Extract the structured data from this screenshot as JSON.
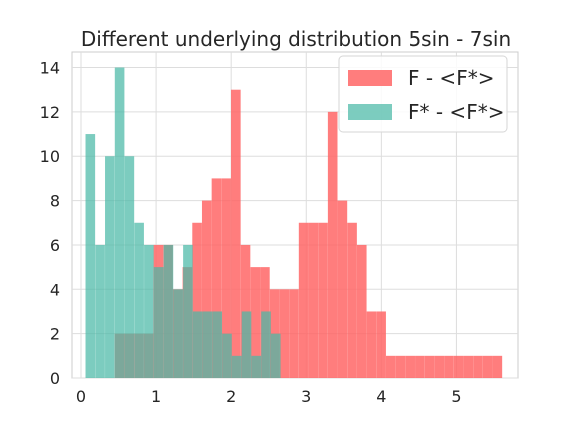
{
  "chart_data": {
    "type": "bar",
    "title": "Different underlying distribution 5sin - 7sin",
    "xlabel": "",
    "ylabel": "",
    "xlim": [
      -0.12,
      5.82
    ],
    "ylim": [
      0,
      14.7
    ],
    "xticks": [
      0,
      1,
      2,
      3,
      4,
      5
    ],
    "yticks": [
      0,
      2,
      4,
      6,
      8,
      10,
      12,
      14
    ],
    "grid": true,
    "legend_position": "top-right",
    "bar_width": 0.128,
    "series": [
      {
        "name": "F - <F*>",
        "color": "#ff6666",
        "opacity": 0.85,
        "bins": [
          [
            0.45,
            2
          ],
          [
            0.579,
            2
          ],
          [
            0.708,
            2
          ],
          [
            0.837,
            2
          ],
          [
            0.966,
            6
          ],
          [
            1.095,
            6
          ],
          [
            1.224,
            4
          ],
          [
            1.353,
            5
          ],
          [
            1.482,
            7
          ],
          [
            1.611,
            8
          ],
          [
            1.74,
            9
          ],
          [
            1.869,
            9
          ],
          [
            1.998,
            13
          ],
          [
            2.127,
            6
          ],
          [
            2.256,
            5
          ],
          [
            2.385,
            5
          ],
          [
            2.514,
            4
          ],
          [
            2.643,
            4
          ],
          [
            2.772,
            4
          ],
          [
            2.901,
            7
          ],
          [
            3.03,
            7
          ],
          [
            3.159,
            7
          ],
          [
            3.288,
            12
          ],
          [
            3.417,
            8
          ],
          [
            3.546,
            7
          ],
          [
            3.675,
            6
          ],
          [
            3.804,
            3
          ],
          [
            3.933,
            3
          ],
          [
            4.062,
            1
          ],
          [
            4.191,
            1
          ],
          [
            4.32,
            1
          ],
          [
            4.449,
            1
          ],
          [
            4.578,
            1
          ],
          [
            4.707,
            1
          ],
          [
            4.836,
            1
          ],
          [
            4.965,
            1
          ],
          [
            5.094,
            1
          ],
          [
            5.223,
            1
          ],
          [
            5.352,
            1
          ],
          [
            5.481,
            1
          ]
        ]
      },
      {
        "name": "F* - <F*>",
        "color": "#4ab8a6",
        "opacity": 0.72,
        "bins": [
          [
            0.06,
            11
          ],
          [
            0.19,
            6
          ],
          [
            0.32,
            10
          ],
          [
            0.45,
            14
          ],
          [
            0.58,
            10
          ],
          [
            0.71,
            7
          ],
          [
            0.84,
            6
          ],
          [
            0.97,
            5
          ],
          [
            1.1,
            6
          ],
          [
            1.23,
            4
          ],
          [
            1.36,
            6
          ],
          [
            1.49,
            3
          ],
          [
            1.62,
            3
          ],
          [
            1.75,
            3
          ],
          [
            1.88,
            2
          ],
          [
            2.01,
            1
          ],
          [
            2.14,
            3
          ],
          [
            2.27,
            1
          ],
          [
            2.4,
            3
          ],
          [
            2.53,
            2
          ]
        ]
      }
    ]
  }
}
